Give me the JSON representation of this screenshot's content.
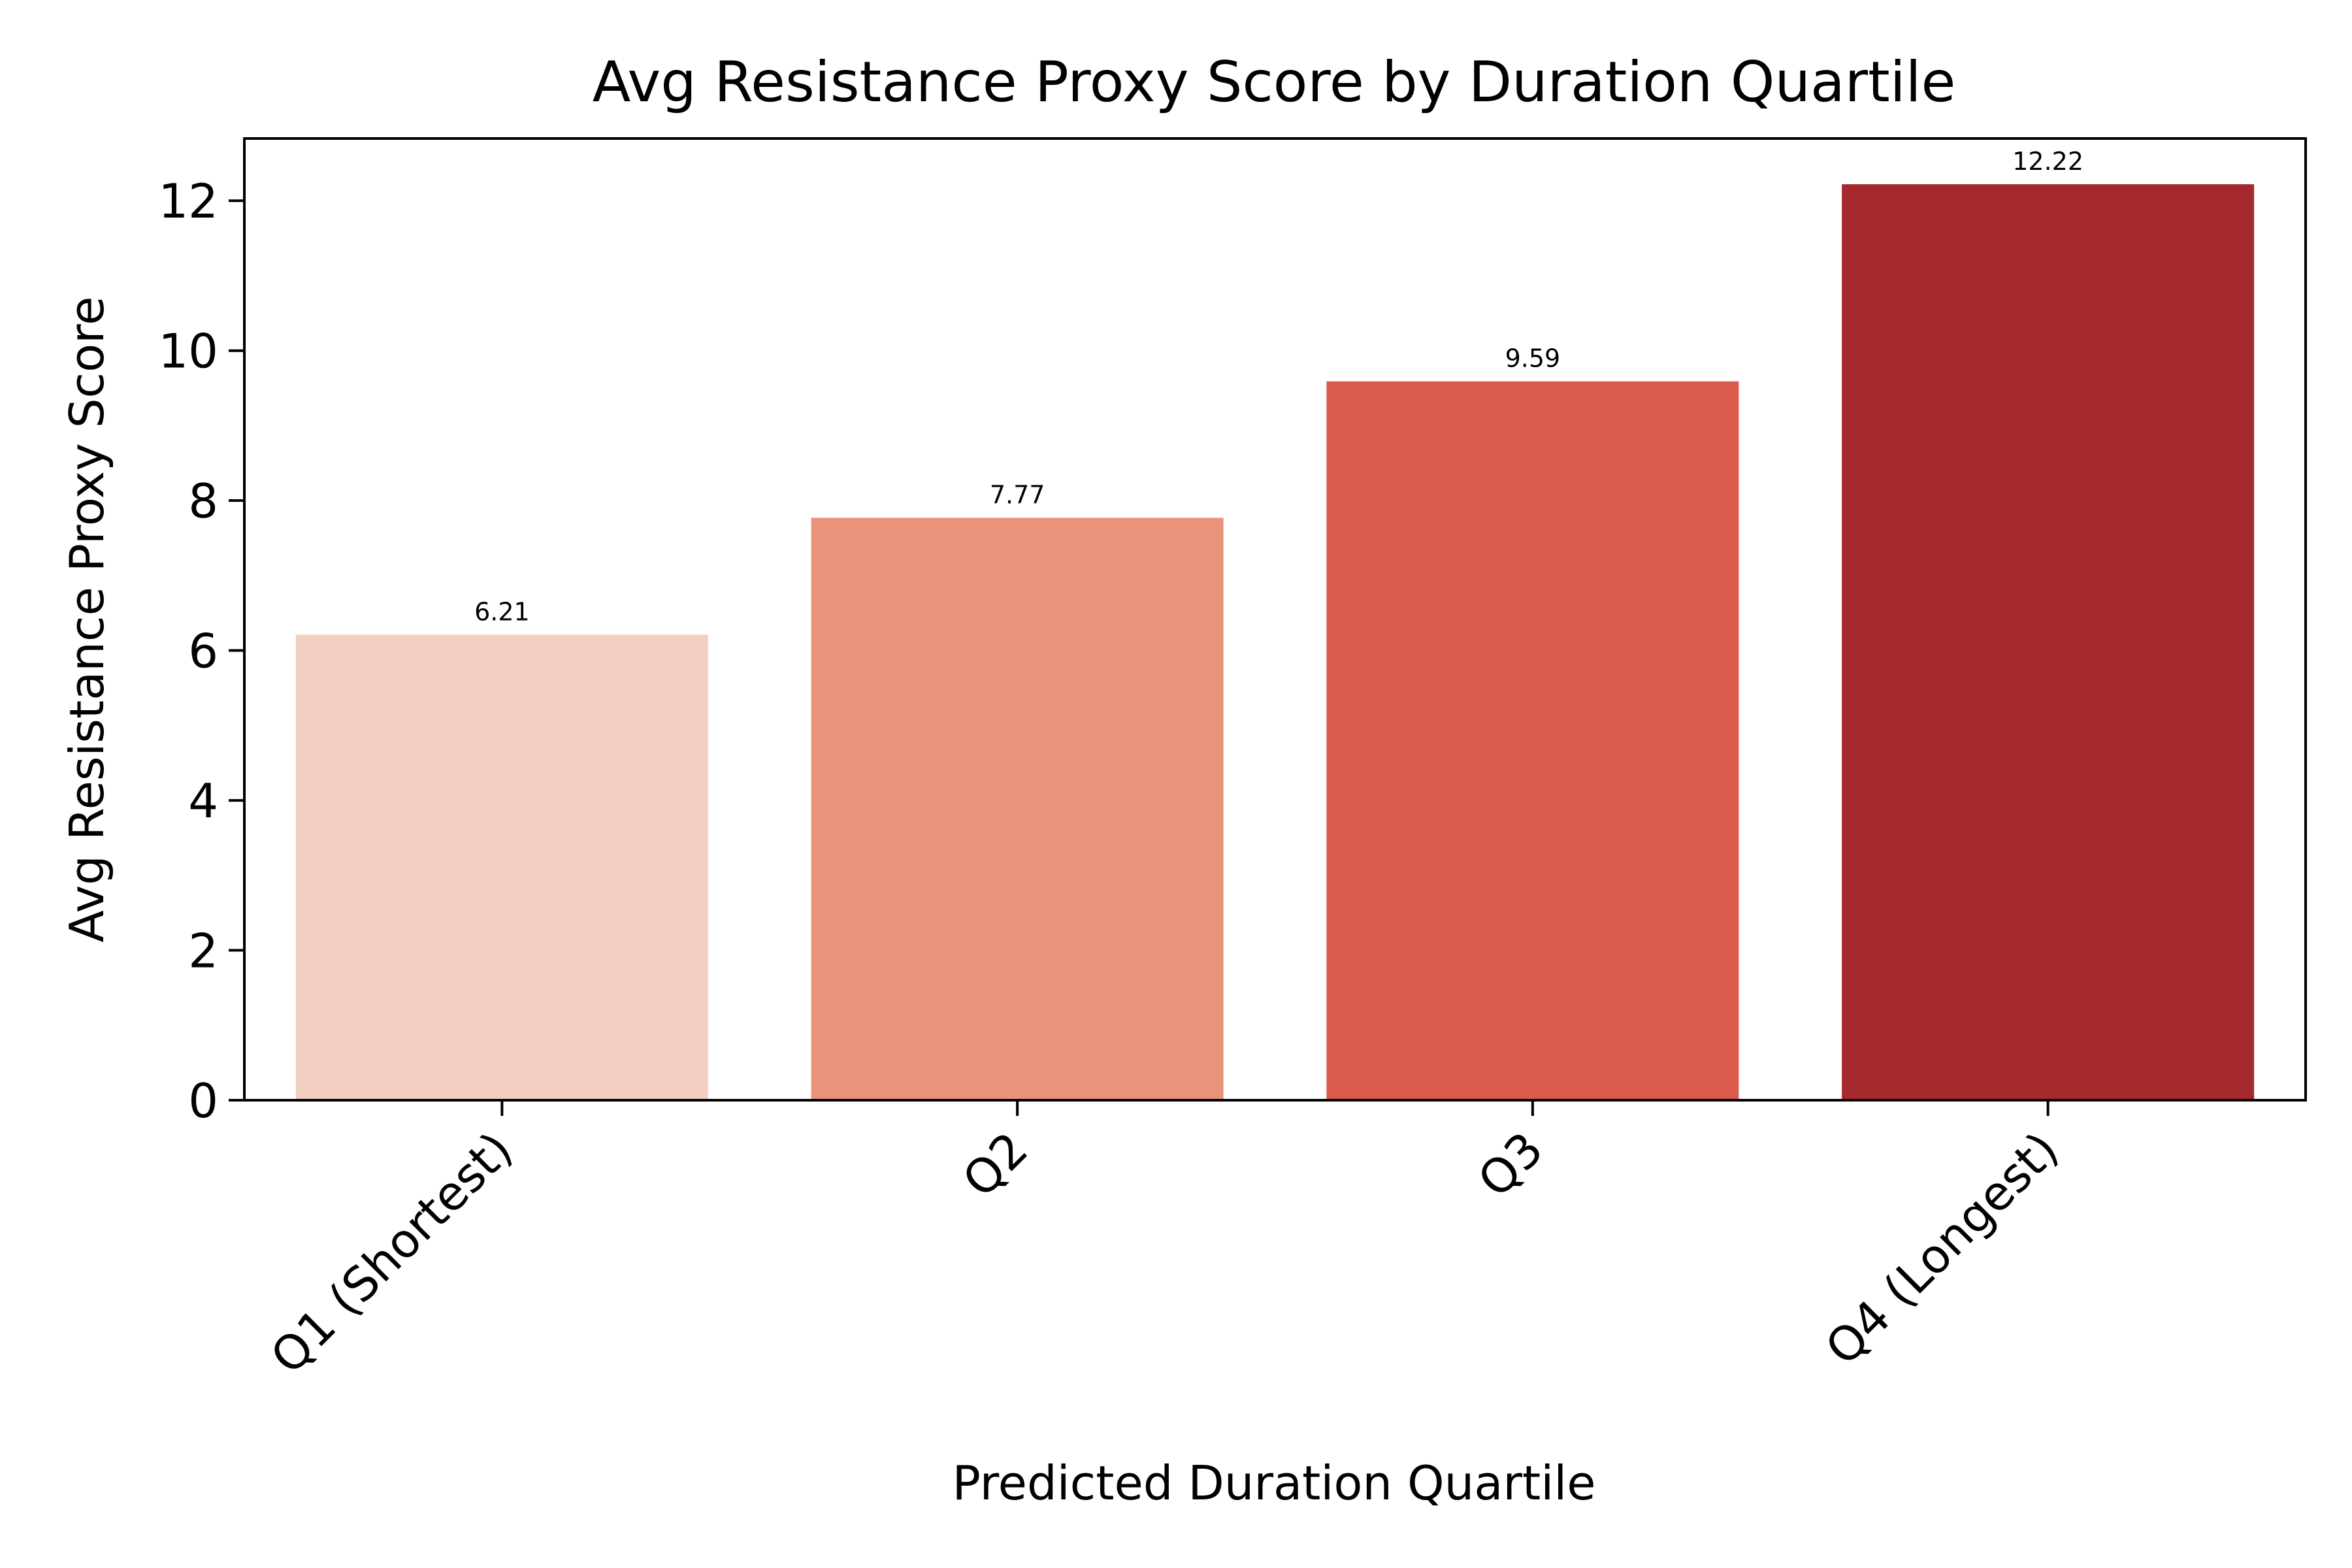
{
  "chart_data": {
    "type": "bar",
    "title": "Avg Resistance Proxy Score by Duration Quartile",
    "xlabel": "Predicted Duration Quartile",
    "ylabel": "Avg Resistance Proxy Score",
    "categories": [
      "Q1 (Shortest)",
      "Q2",
      "Q3",
      "Q4 (Longest)"
    ],
    "values": [
      6.21,
      7.77,
      9.59,
      12.22
    ],
    "value_labels": [
      "6.21",
      "7.77",
      "9.59",
      "12.22"
    ],
    "colors": [
      "#f3cfc2",
      "#e9937b",
      "#da5a4c",
      "#a5282d"
    ],
    "ylim": [
      0,
      12.83
    ],
    "yticks": [
      0,
      2,
      4,
      6,
      8,
      10,
      12
    ],
    "ytick_labels": [
      "0",
      "2",
      "4",
      "6",
      "8",
      "10",
      "12"
    ],
    "grid": false,
    "legend": "none"
  }
}
